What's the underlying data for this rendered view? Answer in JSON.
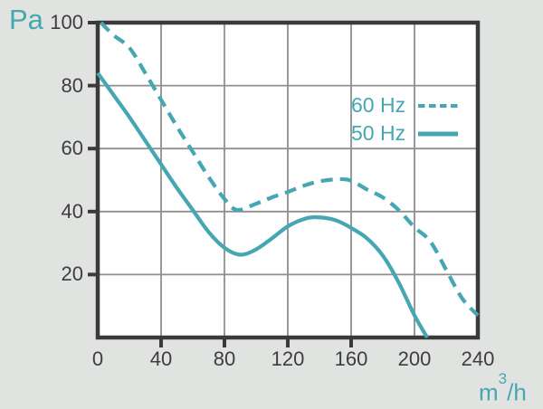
{
  "colors": {
    "teal": "#45A7B1",
    "axis_frame": "#3A3A3C",
    "grid_line": "#8F8F8F",
    "tick_text": "#3D3D3F",
    "page_background": "#E1E3E1",
    "plot_background": "#FEFEFE"
  },
  "chart_data": {
    "type": "line",
    "title": "",
    "ylabel": "Pa",
    "xlabel": "m³/h",
    "xlabel_parts": {
      "base": "m",
      "sup": "3",
      "rest": "/h"
    },
    "xlim": [
      0,
      240
    ],
    "ylim": [
      0,
      100
    ],
    "x_ticks": [
      0,
      40,
      80,
      120,
      160,
      200,
      240
    ],
    "y_ticks": [
      20,
      40,
      60,
      80,
      100
    ],
    "x_outer_ticks": [
      40,
      80,
      120,
      160
    ],
    "y_outer_ticks": [
      20,
      40,
      60,
      80,
      100
    ],
    "grid": true,
    "legend_position": "inside-upper-right",
    "series": [
      {
        "name": "60 Hz",
        "style": "dashed",
        "color": "#45A7B1",
        "points": [
          [
            2,
            100
          ],
          [
            10,
            96
          ],
          [
            20,
            92
          ],
          [
            30,
            84
          ],
          [
            40,
            75.5
          ],
          [
            50,
            67
          ],
          [
            60,
            59
          ],
          [
            70,
            51
          ],
          [
            80,
            44
          ],
          [
            88,
            40.5
          ],
          [
            100,
            42.5
          ],
          [
            110,
            44.5
          ],
          [
            120,
            46.2
          ],
          [
            130,
            48.2
          ],
          [
            140,
            49.6
          ],
          [
            152,
            50.3
          ],
          [
            160,
            49.8
          ],
          [
            170,
            47
          ],
          [
            180,
            44.5
          ],
          [
            190,
            40.5
          ],
          [
            200,
            35
          ],
          [
            210,
            30.5
          ],
          [
            220,
            21.5
          ],
          [
            230,
            12.5
          ],
          [
            240,
            7
          ]
        ]
      },
      {
        "name": "50 Hz",
        "style": "solid",
        "color": "#45A7B1",
        "points": [
          [
            0,
            84
          ],
          [
            10,
            77
          ],
          [
            20,
            70
          ],
          [
            30,
            62.5
          ],
          [
            40,
            55
          ],
          [
            50,
            47.5
          ],
          [
            60,
            40.5
          ],
          [
            70,
            33.5
          ],
          [
            80,
            28.5
          ],
          [
            90,
            26.3
          ],
          [
            100,
            28
          ],
          [
            110,
            31.5
          ],
          [
            120,
            35.3
          ],
          [
            130,
            37.6
          ],
          [
            138,
            38.2
          ],
          [
            150,
            37.3
          ],
          [
            160,
            34.8
          ],
          [
            170,
            31.5
          ],
          [
            180,
            26
          ],
          [
            190,
            17.5
          ],
          [
            200,
            7
          ],
          [
            208,
            0
          ]
        ]
      }
    ]
  }
}
